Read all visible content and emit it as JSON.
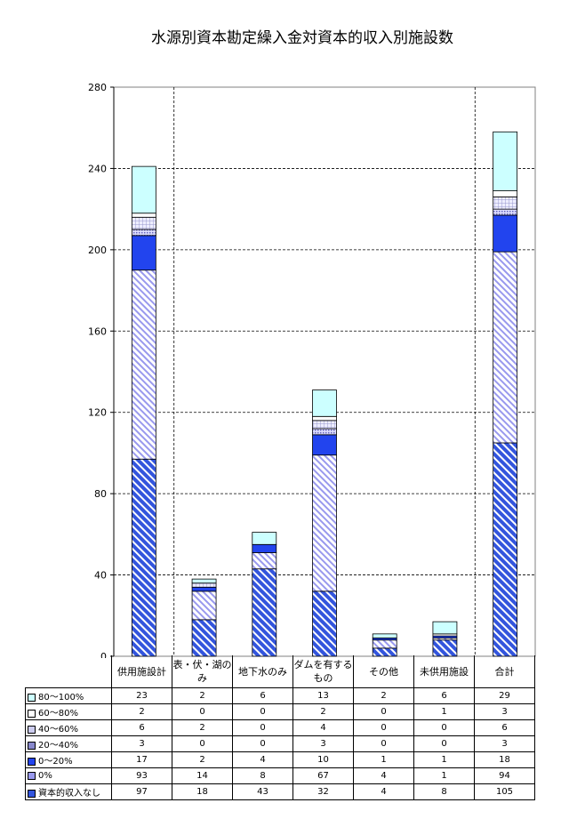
{
  "chart_data": {
    "type": "bar",
    "stacked": true,
    "title": "水源別資本勘定繰入金対資本的収入別施設数",
    "ylim": [
      0,
      280
    ],
    "yticks": [
      0,
      40,
      80,
      120,
      160,
      200,
      240,
      280
    ],
    "categories": [
      "供用施設計",
      "表・伏・湖のみ",
      "地下水のみ",
      "ダムを有するもの",
      "その他",
      "未供用施設",
      "合計"
    ],
    "series": [
      {
        "name": "資本的収入なし",
        "values": [
          97,
          18,
          43,
          32,
          4,
          8,
          105
        ],
        "color": "#3355dd",
        "pattern": "hatch-dense"
      },
      {
        "name": "0%",
        "values": [
          93,
          14,
          8,
          67,
          4,
          1,
          94
        ],
        "color": "#9999ee",
        "pattern": "hatch-light"
      },
      {
        "name": "0〜20%",
        "values": [
          17,
          2,
          4,
          10,
          1,
          1,
          18
        ],
        "color": "#2244ee",
        "pattern": "solid"
      },
      {
        "name": "20〜40%",
        "values": [
          3,
          0,
          0,
          3,
          0,
          0,
          3
        ],
        "color": "#8888cc",
        "pattern": "dots"
      },
      {
        "name": "40〜60%",
        "values": [
          6,
          2,
          0,
          4,
          0,
          0,
          6
        ],
        "color": "#ccccee",
        "pattern": "grid"
      },
      {
        "name": "60〜80%",
        "values": [
          2,
          0,
          0,
          2,
          0,
          1,
          3
        ],
        "color": "#ffffff",
        "pattern": "solid"
      },
      {
        "name": "80〜100%",
        "values": [
          23,
          2,
          6,
          13,
          2,
          6,
          29
        ],
        "color": "#ccffff",
        "pattern": "solid"
      }
    ],
    "table_row_order": [
      "80〜100%",
      "60〜80%",
      "40〜60%",
      "20〜40%",
      "0〜20%",
      "0%",
      "資本的収入なし"
    ],
    "grid": true
  }
}
